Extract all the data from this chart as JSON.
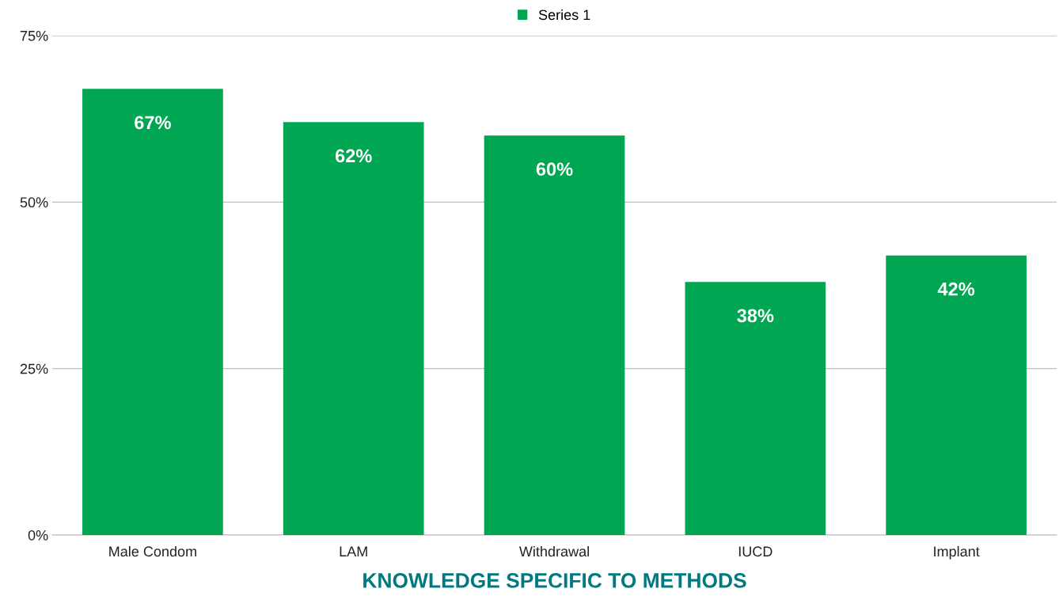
{
  "chart_data": {
    "type": "bar",
    "xlabel": "KNOWLEDGE SPECIFIC TO METHODS",
    "categories": [
      "Male Condom",
      "LAM",
      "Withdrawal",
      "IUCD",
      "Implant"
    ],
    "series": [
      {
        "name": "Series 1",
        "color": "#00a651",
        "values": [
          67,
          62,
          60,
          38,
          42
        ],
        "value_labels": [
          "67%",
          "62%",
          "60%",
          "38%",
          "42%"
        ]
      }
    ],
    "ylim": [
      0,
      75
    ],
    "yticks": [
      {
        "value": 0,
        "label": "0%"
      },
      {
        "value": 25,
        "label": "25%"
      },
      {
        "value": 50,
        "label": "50%"
      },
      {
        "value": 75,
        "label": "75%"
      }
    ],
    "grid": "y",
    "legend": "top"
  }
}
